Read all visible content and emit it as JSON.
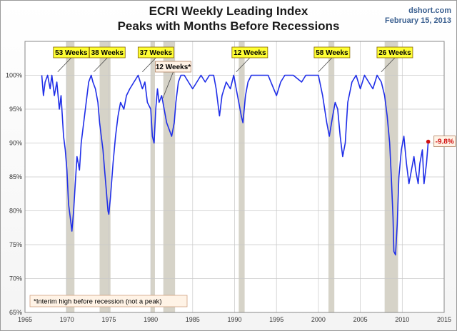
{
  "header": {
    "title_line1": "ECRI Weekly Leading Index",
    "title_line2": "Peaks with Months Before Recessions",
    "source": "dshort.com",
    "date": "February 15, 2013"
  },
  "colors": {
    "line": "#1f2ee8",
    "recession": "#d6d3c8",
    "callout_fill": "#ffff33",
    "interim_fill": "#fff3e6",
    "final_marker": "#d01010"
  },
  "chart_data": {
    "type": "line",
    "title": "ECRI Weekly Leading Index Peaks with Months Before Recessions",
    "xlabel": "",
    "ylabel": "",
    "xlim": [
      1965,
      2015
    ],
    "ylim": [
      65,
      105
    ],
    "x_ticks": [
      "1965",
      "1970",
      "1975",
      "1980",
      "1985",
      "1990",
      "1995",
      "2000",
      "2005",
      "2010",
      "2015"
    ],
    "y_ticks": [
      "65%",
      "70%",
      "75%",
      "80%",
      "85%",
      "90%",
      "95%",
      "100%"
    ],
    "grid": true,
    "recessions": [
      [
        1969.9,
        1970.9
      ],
      [
        1973.9,
        1975.2
      ],
      [
        1980.0,
        1980.5
      ],
      [
        1981.5,
        1982.9
      ],
      [
        1990.5,
        1991.2
      ],
      [
        2001.2,
        2001.9
      ],
      [
        2007.9,
        2009.5
      ]
    ],
    "series": [
      {
        "values": [
          [
            1967.0,
            100
          ],
          [
            1967.2,
            97
          ],
          [
            1967.4,
            99
          ],
          [
            1967.7,
            100
          ],
          [
            1968.0,
            98
          ],
          [
            1968.2,
            100
          ],
          [
            1968.5,
            97
          ],
          [
            1968.8,
            99
          ],
          [
            1969.1,
            95
          ],
          [
            1969.3,
            97
          ],
          [
            1969.6,
            91
          ],
          [
            1969.8,
            89
          ],
          [
            1970.0,
            86
          ],
          [
            1970.2,
            81
          ],
          [
            1970.4,
            79
          ],
          [
            1970.6,
            77
          ],
          [
            1970.8,
            80
          ],
          [
            1971.0,
            84
          ],
          [
            1971.2,
            88
          ],
          [
            1971.5,
            86
          ],
          [
            1971.7,
            90
          ],
          [
            1972.0,
            93
          ],
          [
            1972.3,
            96
          ],
          [
            1972.6,
            99
          ],
          [
            1972.9,
            100
          ],
          [
            1973.1,
            99
          ],
          [
            1973.4,
            98
          ],
          [
            1973.7,
            96
          ],
          [
            1973.9,
            93
          ],
          [
            1974.1,
            91
          ],
          [
            1974.3,
            89
          ],
          [
            1974.5,
            86
          ],
          [
            1974.7,
            83
          ],
          [
            1974.9,
            80
          ],
          [
            1975.0,
            79.5
          ],
          [
            1975.2,
            82
          ],
          [
            1975.5,
            87
          ],
          [
            1975.8,
            91
          ],
          [
            1976.1,
            94
          ],
          [
            1976.4,
            96
          ],
          [
            1976.8,
            95
          ],
          [
            1977.1,
            97
          ],
          [
            1977.5,
            98
          ],
          [
            1978.0,
            99
          ],
          [
            1978.5,
            100
          ],
          [
            1979.0,
            98
          ],
          [
            1979.3,
            99
          ],
          [
            1979.6,
            96
          ],
          [
            1980.0,
            95
          ],
          [
            1980.2,
            91
          ],
          [
            1980.4,
            90
          ],
          [
            1980.6,
            95
          ],
          [
            1980.8,
            98
          ],
          [
            1981.0,
            96
          ],
          [
            1981.3,
            97
          ],
          [
            1981.6,
            95
          ],
          [
            1981.9,
            93
          ],
          [
            1982.2,
            92
          ],
          [
            1982.5,
            91
          ],
          [
            1982.8,
            93
          ],
          [
            1983.0,
            96
          ],
          [
            1983.3,
            99
          ],
          [
            1983.6,
            100
          ],
          [
            1984.0,
            100
          ],
          [
            1984.5,
            99
          ],
          [
            1985.0,
            98
          ],
          [
            1985.5,
            99
          ],
          [
            1986.0,
            100
          ],
          [
            1986.5,
            99
          ],
          [
            1987.0,
            100
          ],
          [
            1987.5,
            100
          ],
          [
            1987.8,
            98
          ],
          [
            1988.0,
            96
          ],
          [
            1988.2,
            94
          ],
          [
            1988.5,
            97
          ],
          [
            1989.0,
            99
          ],
          [
            1989.5,
            98
          ],
          [
            1989.9,
            100
          ],
          [
            1990.2,
            98
          ],
          [
            1990.5,
            96
          ],
          [
            1990.8,
            94
          ],
          [
            1991.0,
            93
          ],
          [
            1991.3,
            97
          ],
          [
            1991.6,
            99
          ],
          [
            1992.0,
            100
          ],
          [
            1993.0,
            100
          ],
          [
            1994.0,
            100
          ],
          [
            1995.0,
            97
          ],
          [
            1995.5,
            99
          ],
          [
            1996.0,
            100
          ],
          [
            1997.0,
            100
          ],
          [
            1998.0,
            99
          ],
          [
            1998.5,
            100
          ],
          [
            1999.0,
            100
          ],
          [
            2000.0,
            100
          ],
          [
            2000.5,
            97
          ],
          [
            2001.0,
            93
          ],
          [
            2001.3,
            91
          ],
          [
            2001.7,
            94
          ],
          [
            2002.0,
            96
          ],
          [
            2002.3,
            95
          ],
          [
            2002.6,
            91
          ],
          [
            2002.9,
            88
          ],
          [
            2003.2,
            90
          ],
          [
            2003.5,
            96
          ],
          [
            2004.0,
            99
          ],
          [
            2004.5,
            100
          ],
          [
            2005.0,
            98
          ],
          [
            2005.5,
            100
          ],
          [
            2006.0,
            99
          ],
          [
            2006.5,
            98
          ],
          [
            2007.0,
            100
          ],
          [
            2007.5,
            99
          ],
          [
            2007.9,
            97
          ],
          [
            2008.2,
            94
          ],
          [
            2008.5,
            90
          ],
          [
            2008.7,
            85
          ],
          [
            2008.9,
            79
          ],
          [
            2009.0,
            74
          ],
          [
            2009.2,
            73.5
          ],
          [
            2009.4,
            78
          ],
          [
            2009.6,
            85
          ],
          [
            2009.9,
            89
          ],
          [
            2010.2,
            91
          ],
          [
            2010.5,
            87
          ],
          [
            2010.8,
            84
          ],
          [
            2011.1,
            86
          ],
          [
            2011.4,
            88
          ],
          [
            2011.6,
            86
          ],
          [
            2011.9,
            84
          ],
          [
            2012.1,
            87
          ],
          [
            2012.4,
            89
          ],
          [
            2012.6,
            84
          ],
          [
            2012.9,
            87
          ],
          [
            2013.1,
            90.2
          ]
        ]
      }
    ],
    "annotations": [
      {
        "label": "53 Weeks",
        "x": 1968.9,
        "y": 100.5,
        "style": "callout"
      },
      {
        "label": "38 Weeks",
        "x": 1973.2,
        "y": 100.5,
        "style": "callout"
      },
      {
        "label": "37 Weeks",
        "x": 1979.0,
        "y": 100.5,
        "style": "callout"
      },
      {
        "label": "12 Weeks*",
        "x": 1981.4,
        "y": 96.5,
        "style": "interim"
      },
      {
        "label": "12 Weeks",
        "x": 1990.2,
        "y": 100.5,
        "style": "callout"
      },
      {
        "label": "58 Weeks",
        "x": 2000.0,
        "y": 100.5,
        "style": "callout"
      },
      {
        "label": "26 Weeks",
        "x": 2007.5,
        "y": 100.5,
        "style": "callout"
      }
    ],
    "final_point": {
      "x": 2013.1,
      "y": 90.2,
      "label": "-9.8%"
    },
    "footnote": "*Interim high before recession (not a peak)"
  }
}
